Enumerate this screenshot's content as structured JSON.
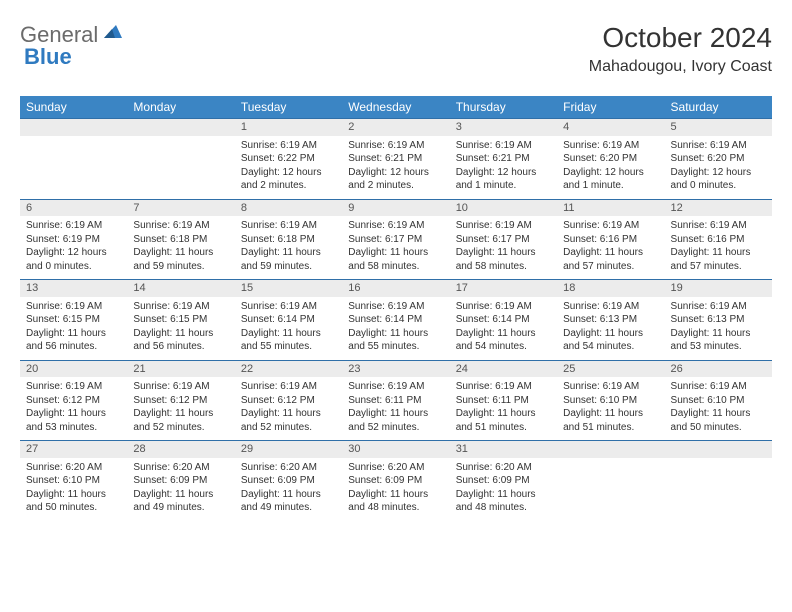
{
  "logo": {
    "text1": "General",
    "text2": "Blue"
  },
  "title": "October 2024",
  "location": "Mahadougou, Ivory Coast",
  "header_bg": "#3b85c4",
  "daynum_bg": "#ececec",
  "border_color": "#2f6fa8",
  "day_names": [
    "Sunday",
    "Monday",
    "Tuesday",
    "Wednesday",
    "Thursday",
    "Friday",
    "Saturday"
  ],
  "weeks": [
    [
      null,
      null,
      {
        "n": "1",
        "sr": "6:19 AM",
        "ss": "6:22 PM",
        "dl": "12 hours and 2 minutes."
      },
      {
        "n": "2",
        "sr": "6:19 AM",
        "ss": "6:21 PM",
        "dl": "12 hours and 2 minutes."
      },
      {
        "n": "3",
        "sr": "6:19 AM",
        "ss": "6:21 PM",
        "dl": "12 hours and 1 minute."
      },
      {
        "n": "4",
        "sr": "6:19 AM",
        "ss": "6:20 PM",
        "dl": "12 hours and 1 minute."
      },
      {
        "n": "5",
        "sr": "6:19 AM",
        "ss": "6:20 PM",
        "dl": "12 hours and 0 minutes."
      }
    ],
    [
      {
        "n": "6",
        "sr": "6:19 AM",
        "ss": "6:19 PM",
        "dl": "12 hours and 0 minutes."
      },
      {
        "n": "7",
        "sr": "6:19 AM",
        "ss": "6:18 PM",
        "dl": "11 hours and 59 minutes."
      },
      {
        "n": "8",
        "sr": "6:19 AM",
        "ss": "6:18 PM",
        "dl": "11 hours and 59 minutes."
      },
      {
        "n": "9",
        "sr": "6:19 AM",
        "ss": "6:17 PM",
        "dl": "11 hours and 58 minutes."
      },
      {
        "n": "10",
        "sr": "6:19 AM",
        "ss": "6:17 PM",
        "dl": "11 hours and 58 minutes."
      },
      {
        "n": "11",
        "sr": "6:19 AM",
        "ss": "6:16 PM",
        "dl": "11 hours and 57 minutes."
      },
      {
        "n": "12",
        "sr": "6:19 AM",
        "ss": "6:16 PM",
        "dl": "11 hours and 57 minutes."
      }
    ],
    [
      {
        "n": "13",
        "sr": "6:19 AM",
        "ss": "6:15 PM",
        "dl": "11 hours and 56 minutes."
      },
      {
        "n": "14",
        "sr": "6:19 AM",
        "ss": "6:15 PM",
        "dl": "11 hours and 56 minutes."
      },
      {
        "n": "15",
        "sr": "6:19 AM",
        "ss": "6:14 PM",
        "dl": "11 hours and 55 minutes."
      },
      {
        "n": "16",
        "sr": "6:19 AM",
        "ss": "6:14 PM",
        "dl": "11 hours and 55 minutes."
      },
      {
        "n": "17",
        "sr": "6:19 AM",
        "ss": "6:14 PM",
        "dl": "11 hours and 54 minutes."
      },
      {
        "n": "18",
        "sr": "6:19 AM",
        "ss": "6:13 PM",
        "dl": "11 hours and 54 minutes."
      },
      {
        "n": "19",
        "sr": "6:19 AM",
        "ss": "6:13 PM",
        "dl": "11 hours and 53 minutes."
      }
    ],
    [
      {
        "n": "20",
        "sr": "6:19 AM",
        "ss": "6:12 PM",
        "dl": "11 hours and 53 minutes."
      },
      {
        "n": "21",
        "sr": "6:19 AM",
        "ss": "6:12 PM",
        "dl": "11 hours and 52 minutes."
      },
      {
        "n": "22",
        "sr": "6:19 AM",
        "ss": "6:12 PM",
        "dl": "11 hours and 52 minutes."
      },
      {
        "n": "23",
        "sr": "6:19 AM",
        "ss": "6:11 PM",
        "dl": "11 hours and 52 minutes."
      },
      {
        "n": "24",
        "sr": "6:19 AM",
        "ss": "6:11 PM",
        "dl": "11 hours and 51 minutes."
      },
      {
        "n": "25",
        "sr": "6:19 AM",
        "ss": "6:10 PM",
        "dl": "11 hours and 51 minutes."
      },
      {
        "n": "26",
        "sr": "6:19 AM",
        "ss": "6:10 PM",
        "dl": "11 hours and 50 minutes."
      }
    ],
    [
      {
        "n": "27",
        "sr": "6:20 AM",
        "ss": "6:10 PM",
        "dl": "11 hours and 50 minutes."
      },
      {
        "n": "28",
        "sr": "6:20 AM",
        "ss": "6:09 PM",
        "dl": "11 hours and 49 minutes."
      },
      {
        "n": "29",
        "sr": "6:20 AM",
        "ss": "6:09 PM",
        "dl": "11 hours and 49 minutes."
      },
      {
        "n": "30",
        "sr": "6:20 AM",
        "ss": "6:09 PM",
        "dl": "11 hours and 48 minutes."
      },
      {
        "n": "31",
        "sr": "6:20 AM",
        "ss": "6:09 PM",
        "dl": "11 hours and 48 minutes."
      },
      null,
      null
    ]
  ],
  "labels": {
    "sunrise": "Sunrise: ",
    "sunset": "Sunset: ",
    "daylight": "Daylight: "
  }
}
